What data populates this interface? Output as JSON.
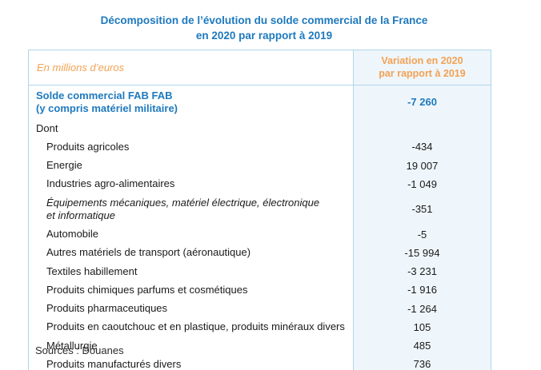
{
  "title": {
    "text": "Décomposition de l’évolution du solde commercial de la France\nen 2020 par rapport à 2019"
  },
  "table": {
    "header": {
      "col1": "En millions d’euros",
      "col2": "Variation en 2020\npar rapport à 2019"
    },
    "rows": [
      {
        "label": "Solde commercial FAB FAB\n(y compris matériel militaire)",
        "value": "-7 260",
        "style": "total"
      },
      {
        "label": "Dont",
        "value": "",
        "style": "section"
      },
      {
        "label": "Produits agricoles",
        "value": "-434",
        "style": "item"
      },
      {
        "label": "Energie",
        "value": "19 007",
        "style": "item"
      },
      {
        "label": "Industries agro-alimentaires",
        "value": "-1 049",
        "style": "item"
      },
      {
        "label": "Équipements mécaniques, matériel électrique, électronique\net informatique",
        "value": "-351",
        "style": "item-italic"
      },
      {
        "label": "Automobile",
        "value": "-5",
        "style": "item"
      },
      {
        "label": "Autres matériels de transport (aéronautique)",
        "value": "-15 994",
        "style": "item"
      },
      {
        "label": "Textiles habillement",
        "value": "-3 231",
        "style": "item"
      },
      {
        "label": "Produits chimiques parfums et cosmétiques",
        "value": "-1 916",
        "style": "item"
      },
      {
        "label": "Produits pharmaceutiques",
        "value": "-1 264",
        "style": "item"
      },
      {
        "label": "Produits en caoutchouc et en plastique, produits minéraux divers",
        "value": "105",
        "style": "item"
      },
      {
        "label": "Métallurgie",
        "value": "485",
        "style": "item"
      },
      {
        "label": "Produits manufacturés divers",
        "value": "736",
        "style": "item"
      }
    ]
  },
  "source": "Sources : Douanes",
  "colors": {
    "accent_blue": "#1E79BE",
    "accent_orange": "#F2A254",
    "border_blue": "#AFD6EA",
    "col2_bg": "#EFF6FB",
    "text": "#1A1A1A"
  }
}
